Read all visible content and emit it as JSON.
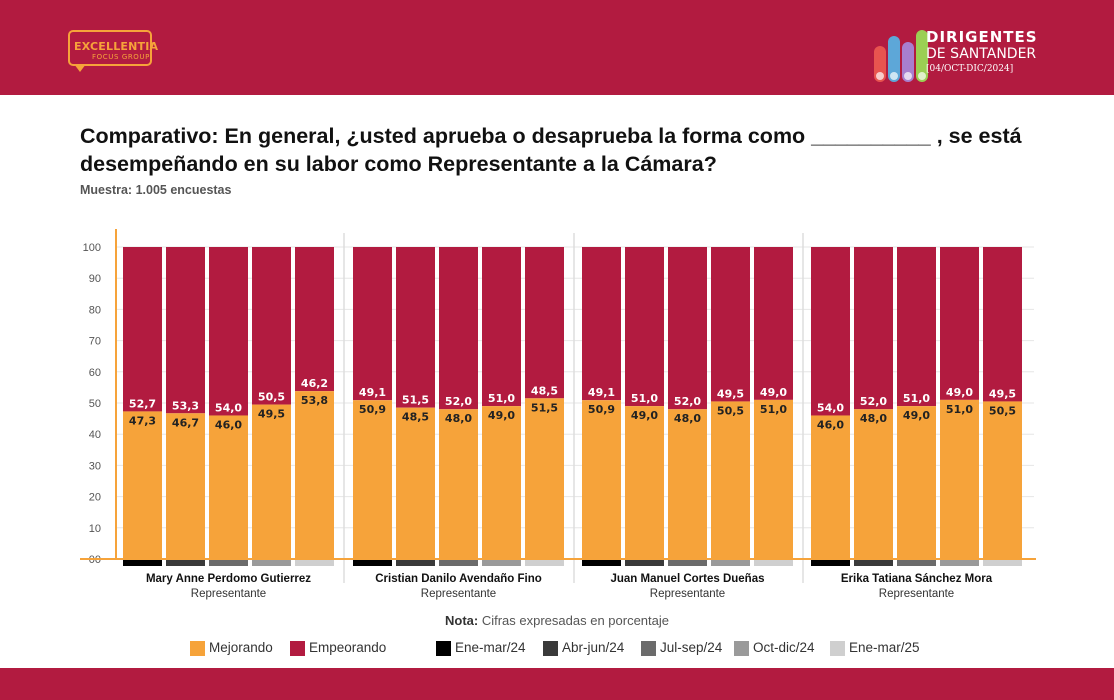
{
  "header": {
    "brand_left_line1": "EXCELLENTIA",
    "brand_left_line2": "FOCUS GROUP",
    "brand_right_title": "DIRIGENTES",
    "brand_right_subtitle": "DE SANTANDER",
    "brand_right_date": "[04/OCT-DIC/2024]"
  },
  "colors": {
    "brand": "#b21b40",
    "mejorando": "#f6a33a",
    "empeorando": "#b21b40",
    "period_colors": [
      "#000000",
      "#3a3a3a",
      "#6b6b6b",
      "#9a9a9a",
      "#cfcfcf"
    ],
    "logo_pills": [
      "#e8544f",
      "#5da7d8",
      "#a87fcf",
      "#9bcf53"
    ]
  },
  "title": "Comparativo: En general, ¿usted aprueba o desaprueba la forma como __________ , se está desempeñando en su labor como Representante a la Cámara?",
  "sample": "Muestra: 1.005 encuestas",
  "note_label": "Nota:",
  "note_text": "Cifras expresadas en porcentaje",
  "chart_data": {
    "type": "bar",
    "stacked": true,
    "ylim": [
      0,
      100
    ],
    "yticks": [
      "00",
      "10",
      "20",
      "30",
      "40",
      "50",
      "60",
      "70",
      "80",
      "90",
      "100"
    ],
    "grid": true,
    "legend_placement": "bottom",
    "series": [
      {
        "name": "Mejorando",
        "color": "#f6a33a"
      },
      {
        "name": "Empeorando",
        "color": "#b21b40"
      }
    ],
    "periods": [
      "Ene-mar/24",
      "Abr-jun/24",
      "Jul-sep/24",
      "Oct-dic/24",
      "Ene-mar/25"
    ],
    "groups": [
      {
        "name": "Mary Anne Perdomo Gutierrez",
        "role": "Representante",
        "mejorando": [
          47.3,
          46.7,
          46.0,
          49.5,
          53.8
        ],
        "empeorando": [
          52.7,
          53.3,
          54.0,
          50.5,
          46.2
        ],
        "mejorando_labels": [
          "47,3",
          "46,7",
          "46,0",
          "49,5",
          "53,8"
        ],
        "empeorando_labels": [
          "52,7",
          "53,3",
          "54,0",
          "50,5",
          "46,2"
        ]
      },
      {
        "name": "Cristian Danilo Avendaño Fino",
        "role": "Representante",
        "mejorando": [
          50.9,
          48.5,
          48.0,
          49.0,
          51.5
        ],
        "empeorando": [
          49.1,
          51.5,
          52.0,
          51.0,
          48.5
        ],
        "mejorando_labels": [
          "50,9",
          "48,5",
          "48,0",
          "49,0",
          "51,5"
        ],
        "empeorando_labels": [
          "49,1",
          "51,5",
          "52,0",
          "51,0",
          "48,5"
        ]
      },
      {
        "name": "Juan Manuel Cortes Dueñas",
        "role": "Representante",
        "mejorando": [
          50.9,
          49.0,
          48.0,
          50.5,
          51.0
        ],
        "empeorando": [
          49.1,
          51.0,
          52.0,
          49.5,
          49.0
        ],
        "mejorando_labels": [
          "50,9",
          "49,0",
          "48,0",
          "50,5",
          "51,0"
        ],
        "empeorando_labels": [
          "49,1",
          "51,0",
          "52,0",
          "49,5",
          "49,0"
        ]
      },
      {
        "name": "Erika Tatiana Sánchez Mora",
        "role": "Representante",
        "mejorando": [
          46.0,
          48.0,
          49.0,
          51.0,
          50.5
        ],
        "empeorando": [
          54.0,
          52.0,
          51.0,
          49.0,
          49.5
        ],
        "mejorando_labels": [
          "46,0",
          "48,0",
          "49,0",
          "51,0",
          "50,5"
        ],
        "empeorando_labels": [
          "54,0",
          "52,0",
          "51,0",
          "49,0",
          "49,5"
        ]
      }
    ]
  }
}
